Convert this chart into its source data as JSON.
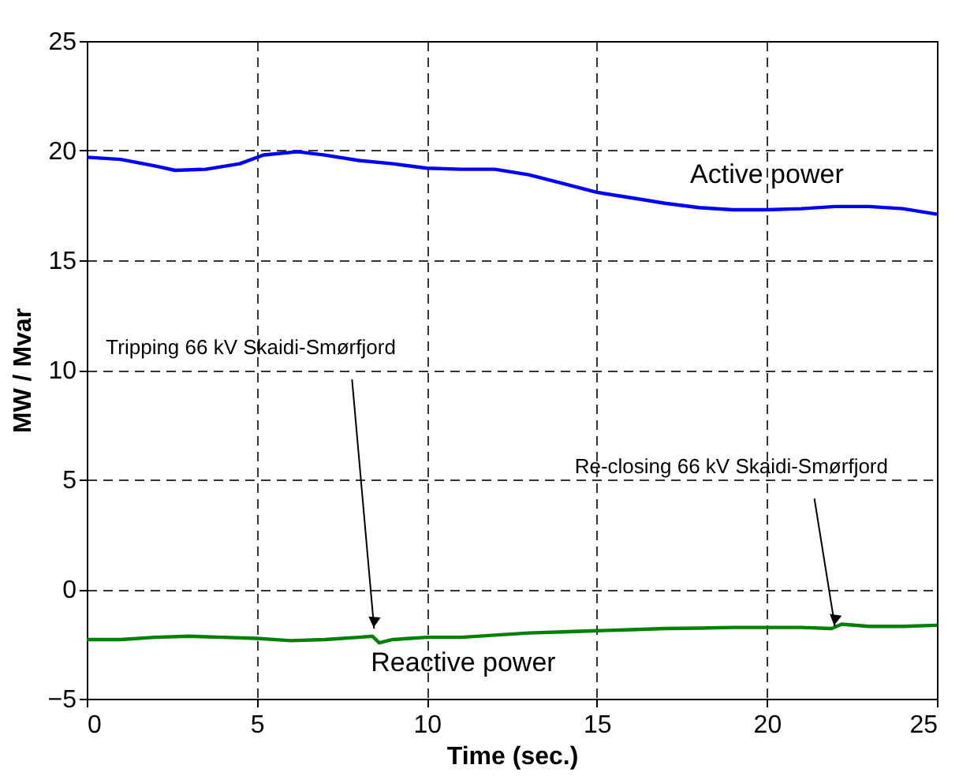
{
  "chart_data": {
    "type": "line",
    "xlabel": "Time (sec.)",
    "ylabel": "MW / Mvar",
    "xlim": [
      0,
      25
    ],
    "ylim": [
      -5,
      25
    ],
    "xticks": [
      0,
      5,
      10,
      15,
      20,
      25
    ],
    "yticks": [
      -5,
      0,
      5,
      10,
      15,
      20,
      25
    ],
    "grid": true,
    "line_style": "solid",
    "marker": "none",
    "series": [
      {
        "name": "Active power",
        "color": "#0000ff",
        "x": [
          0,
          1,
          2,
          2.6,
          3.5,
          4.5,
          5.2,
          6.2,
          7,
          8,
          9,
          10,
          11,
          12,
          13,
          14,
          15,
          16,
          17,
          18,
          19,
          20,
          21,
          22,
          23,
          24,
          25
        ],
        "values": [
          19.7,
          19.6,
          19.3,
          19.1,
          19.15,
          19.4,
          19.8,
          19.95,
          19.8,
          19.55,
          19.4,
          19.2,
          19.15,
          19.15,
          18.9,
          18.5,
          18.1,
          17.85,
          17.6,
          17.4,
          17.3,
          17.3,
          17.35,
          17.45,
          17.45,
          17.35,
          17.1
        ]
      },
      {
        "name": "Reactive power",
        "color": "#008000",
        "x": [
          0,
          1,
          2,
          3,
          4,
          5,
          6,
          7,
          8,
          8.4,
          8.6,
          9,
          10,
          11,
          12,
          13,
          14,
          15,
          16,
          17,
          18,
          19,
          20,
          21,
          21.9,
          22.2,
          23,
          24,
          25
        ],
        "values": [
          -2.3,
          -2.3,
          -2.2,
          -2.15,
          -2.2,
          -2.25,
          -2.35,
          -2.3,
          -2.2,
          -2.15,
          -2.45,
          -2.3,
          -2.2,
          -2.2,
          -2.1,
          -2.0,
          -1.95,
          -1.9,
          -1.85,
          -1.8,
          -1.78,
          -1.75,
          -1.75,
          -1.75,
          -1.8,
          -1.6,
          -1.7,
          -1.7,
          -1.65
        ]
      }
    ],
    "annotations": [
      {
        "text": "Tripping 66 kV Skaidi-Smørfjord",
        "x": 8.45,
        "y": -1.8
      },
      {
        "text": "Re-closing 66 kV Skaidi-Smørfjord",
        "x": 22.0,
        "y": -1.7
      }
    ]
  }
}
